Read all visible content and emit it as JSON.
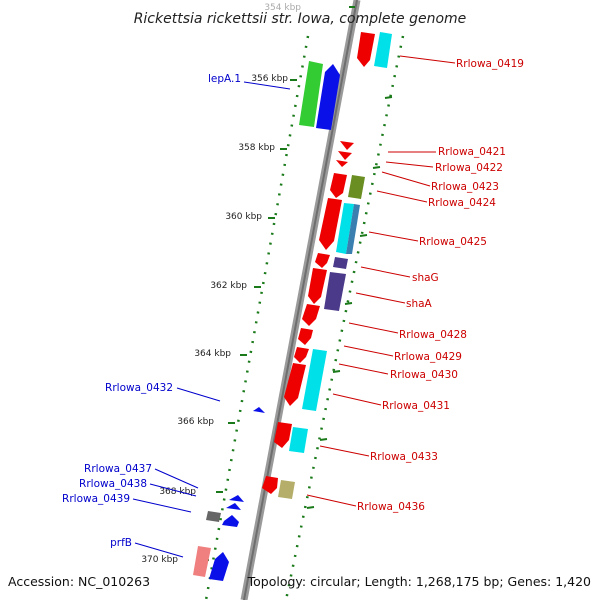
{
  "title": "Rickettsia rickettsii str. Iowa, complete genome",
  "footer": {
    "accession": "Accession: NC_010263",
    "summary": "Topology: circular; Length: 1,268,175 bp; Genes: 1,420"
  },
  "axis": {
    "top_faded_tick": "354 kbp",
    "ticks": [
      "356 kbp",
      "358 kbp",
      "360 kbp",
      "362 kbp",
      "364 kbp",
      "366 kbp",
      "368 kbp",
      "370 kbp"
    ]
  },
  "colors": {
    "backbone": "#8a8a8a",
    "dot_track": "#1a7a1a",
    "left_label": "#0000cc",
    "right_label": "#cc0000",
    "red_feature": "#ee0000",
    "cyan_feature": "#00e0e8",
    "blue_feature": "#0a10e8",
    "green_feature": "#33cc33",
    "olive_feature": "#6b8e23",
    "steel_feature": "#3a7fb0",
    "purple_feature": "#4b3a8a",
    "pink_feature": "#f08080",
    "gray_feature": "#666666",
    "khaki_feature": "#b5ae6a"
  },
  "left_labels": [
    "lepA.1",
    "Rrlowa_0432",
    "Rrlowa_0437",
    "Rrlowa_0438",
    "Rrlowa_0439",
    "prfB"
  ],
  "right_labels": [
    "Rrlowa_0419",
    "Rrlowa_0421",
    "Rrlowa_0422",
    "Rrlowa_0423",
    "Rrlowa_0424",
    "Rrlowa_0425",
    "shaG",
    "shaA",
    "Rrlowa_0428",
    "Rrlowa_0429",
    "Rrlowa_0430",
    "Rrlowa_0431",
    "Rrlowa_0433",
    "Rrlowa_0436"
  ]
}
